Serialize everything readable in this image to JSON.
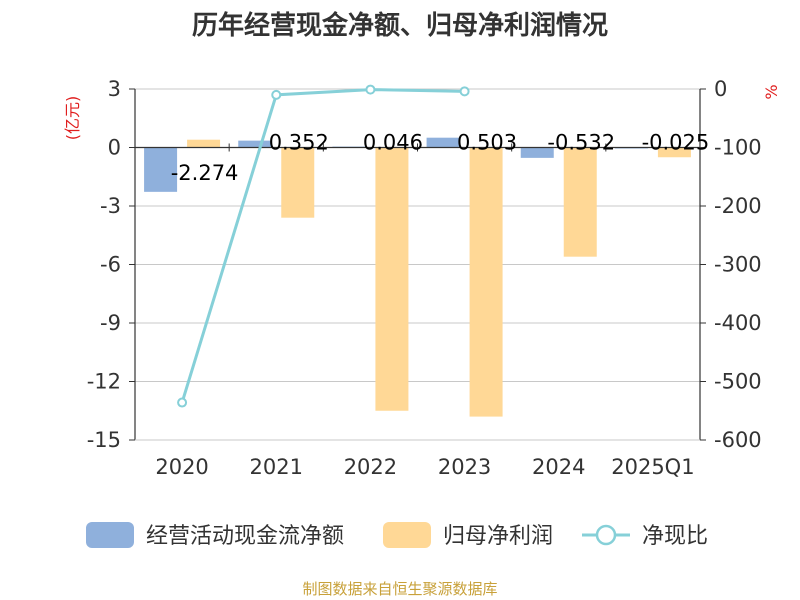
{
  "chart_data": {
    "type": "bar",
    "title": "历年经营现金净额、归母净利润情况",
    "categories": [
      "2020",
      "2021",
      "2022",
      "2023",
      "2024",
      "2025Q1"
    ],
    "left_axis": {
      "unit": "(亿元)",
      "min": -15,
      "max": 3,
      "step": 3,
      "ticks": [
        "3",
        "0",
        "-3",
        "-6",
        "-9",
        "-12",
        "-15"
      ]
    },
    "right_axis": {
      "unit": "%",
      "min": -600,
      "max": 0,
      "step": 100,
      "ticks": [
        "0",
        "-100",
        "-200",
        "-300",
        "-400",
        "-500",
        "-600"
      ]
    },
    "series": [
      {
        "name": "经营活动现金流净额",
        "type": "bar",
        "axis": "left",
        "color": "#8fb0dc",
        "values": [
          -2.274,
          0.352,
          0.046,
          0.503,
          -0.532,
          -0.025
        ],
        "labels": [
          "-2.274",
          "0.352",
          "0.046",
          "0.503",
          "-0.532",
          "-0.025"
        ]
      },
      {
        "name": "归母净利润",
        "type": "bar",
        "axis": "left",
        "color": "#ffd896",
        "values": [
          0.4,
          -3.6,
          -13.5,
          -13.8,
          -5.6,
          -0.5
        ]
      },
      {
        "name": "净现比",
        "type": "line",
        "axis": "right",
        "color": "#86d0d8",
        "x": [
          "2020",
          "2021",
          "2022",
          "2023"
        ],
        "values": [
          -536,
          -10,
          -1,
          -4
        ]
      }
    ],
    "grid": true,
    "legend_position": "bottom"
  },
  "source": "制图数据来自恒生聚源数据库"
}
